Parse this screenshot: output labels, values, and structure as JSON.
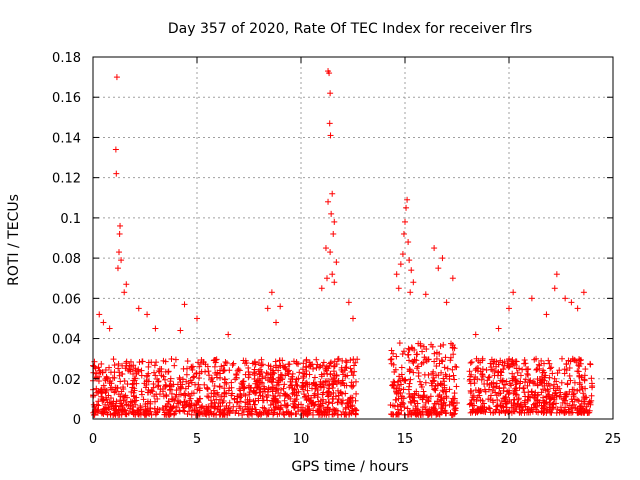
{
  "chart_data": {
    "type": "scatter",
    "title": "Day 357 of 2020, Rate Of TEC Index for receiver flrs",
    "xlabel": "GPS time / hours",
    "ylabel": "ROTI / TECUs",
    "xlim": [
      0,
      25
    ],
    "ylim": [
      0,
      0.18
    ],
    "xticks": [
      0,
      5,
      10,
      15,
      20,
      25
    ],
    "yticks": [
      0,
      0.02,
      0.04,
      0.06,
      0.08,
      0.1,
      0.12,
      0.14,
      0.16,
      0.18
    ],
    "xtick_labels": [
      "0",
      "5",
      "10",
      "15",
      "20",
      "25"
    ],
    "ytick_labels": [
      "0",
      "0.02",
      "0.04",
      "0.06",
      "0.08",
      "0.1",
      "0.12",
      "0.14",
      "0.16",
      "0.18"
    ],
    "grid": true,
    "marker": "+",
    "marker_color": "#ff0000",
    "series": [
      {
        "name": "ROTI",
        "points": [
          [
            1.15,
            0.17
          ],
          [
            1.1,
            0.134
          ],
          [
            1.12,
            0.122
          ],
          [
            1.3,
            0.096
          ],
          [
            1.28,
            0.092
          ],
          [
            1.25,
            0.083
          ],
          [
            1.35,
            0.079
          ],
          [
            1.2,
            0.075
          ],
          [
            1.6,
            0.067
          ],
          [
            1.5,
            0.063
          ],
          [
            0.3,
            0.052
          ],
          [
            0.5,
            0.048
          ],
          [
            0.8,
            0.045
          ],
          [
            2.2,
            0.055
          ],
          [
            2.6,
            0.052
          ],
          [
            3.0,
            0.045
          ],
          [
            4.4,
            0.057
          ],
          [
            4.2,
            0.044
          ],
          [
            5.0,
            0.05
          ],
          [
            6.5,
            0.042
          ],
          [
            8.6,
            0.063
          ],
          [
            8.4,
            0.055
          ],
          [
            9.0,
            0.056
          ],
          [
            8.8,
            0.048
          ],
          [
            11.3,
            0.173
          ],
          [
            11.35,
            0.172
          ],
          [
            11.4,
            0.162
          ],
          [
            11.38,
            0.147
          ],
          [
            11.42,
            0.141
          ],
          [
            11.5,
            0.112
          ],
          [
            11.3,
            0.108
          ],
          [
            11.45,
            0.102
          ],
          [
            11.6,
            0.098
          ],
          [
            11.55,
            0.092
          ],
          [
            11.2,
            0.085
          ],
          [
            11.4,
            0.083
          ],
          [
            11.7,
            0.078
          ],
          [
            11.5,
            0.072
          ],
          [
            11.25,
            0.07
          ],
          [
            11.6,
            0.068
          ],
          [
            11.0,
            0.065
          ],
          [
            12.3,
            0.058
          ],
          [
            12.5,
            0.05
          ],
          [
            15.1,
            0.109
          ],
          [
            15.05,
            0.105
          ],
          [
            15.0,
            0.098
          ],
          [
            14.95,
            0.092
          ],
          [
            15.15,
            0.088
          ],
          [
            14.9,
            0.082
          ],
          [
            15.2,
            0.079
          ],
          [
            14.8,
            0.077
          ],
          [
            15.3,
            0.074
          ],
          [
            14.6,
            0.072
          ],
          [
            15.4,
            0.068
          ],
          [
            14.7,
            0.065
          ],
          [
            15.25,
            0.063
          ],
          [
            16.4,
            0.085
          ],
          [
            16.8,
            0.08
          ],
          [
            17.3,
            0.07
          ],
          [
            16.6,
            0.075
          ],
          [
            16.0,
            0.062
          ],
          [
            17.0,
            0.058
          ],
          [
            18.4,
            0.042
          ],
          [
            19.5,
            0.045
          ],
          [
            20.2,
            0.063
          ],
          [
            20.0,
            0.055
          ],
          [
            21.1,
            0.06
          ],
          [
            22.3,
            0.072
          ],
          [
            22.2,
            0.065
          ],
          [
            23.6,
            0.063
          ],
          [
            23.0,
            0.058
          ],
          [
            21.8,
            0.052
          ],
          [
            22.7,
            0.06
          ],
          [
            23.3,
            0.055
          ]
        ],
        "bands": [
          {
            "x_start": 0.0,
            "x_end": 12.7,
            "y_min": 0.002,
            "y_max": 0.03
          },
          {
            "x_start": 14.3,
            "x_end": 17.5,
            "y_min": 0.002,
            "y_max": 0.038
          },
          {
            "x_start": 18.1,
            "x_end": 24.0,
            "y_min": 0.003,
            "y_max": 0.03
          }
        ]
      }
    ]
  }
}
